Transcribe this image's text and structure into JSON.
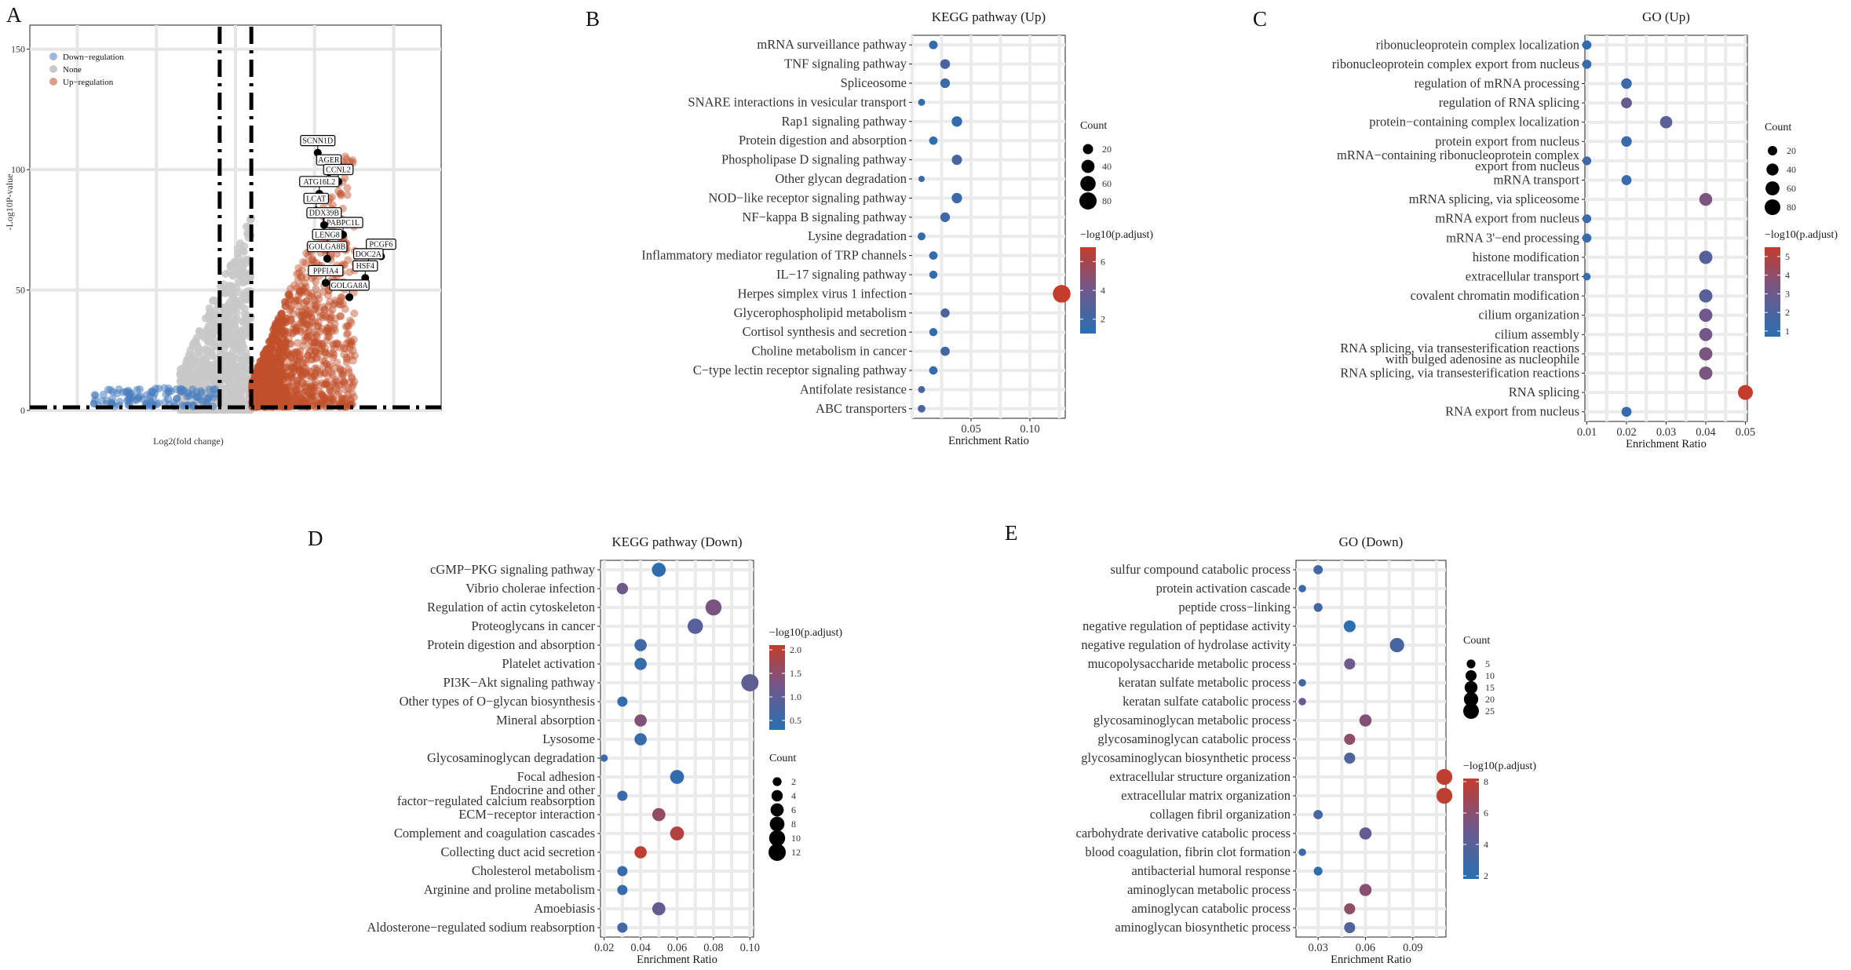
{
  "chart_data": [
    {
      "panel": "A",
      "type": "scatter",
      "title": "",
      "xlabel": "Log2(fold change)",
      "ylabel": "-Log10P-value",
      "yticks": [
        0,
        50,
        100,
        150
      ],
      "ylim": [
        0,
        160
      ],
      "xlim": [
        -13,
        13
      ],
      "thresholds": {
        "x": [
          -1,
          1
        ],
        "y": 1.3
      },
      "legend": [
        {
          "name": "Down−regulation",
          "color": "#4a7fbf"
        },
        {
          "name": "None",
          "color": "#c8c8c8"
        },
        {
          "name": "Up−regulation",
          "color": "#c0502a"
        }
      ],
      "labeled_genes": [
        {
          "gene": "SCNN1D",
          "x": 5.2,
          "y": 107
        },
        {
          "gene": "AGER",
          "x": 5.9,
          "y": 99
        },
        {
          "gene": "CCNL2",
          "x": 6.5,
          "y": 95
        },
        {
          "gene": "ATG16L2",
          "x": 5.3,
          "y": 90
        },
        {
          "gene": "LCAT",
          "x": 5.1,
          "y": 83
        },
        {
          "gene": "PABPC1L",
          "x": 6.8,
          "y": 73
        },
        {
          "gene": "DDX39B",
          "x": 5.6,
          "y": 77
        },
        {
          "gene": "PCGF6",
          "x": 9.2,
          "y": 64
        },
        {
          "gene": "LENG8",
          "x": 5.8,
          "y": 68
        },
        {
          "gene": "DOC2A",
          "x": 8.4,
          "y": 60
        },
        {
          "gene": "GOLGA8B",
          "x": 5.8,
          "y": 63
        },
        {
          "gene": "HSF4",
          "x": 8.2,
          "y": 55
        },
        {
          "gene": "PPFIA4",
          "x": 5.7,
          "y": 53
        },
        {
          "gene": "GOLGA8A",
          "x": 7.2,
          "y": 47
        }
      ]
    },
    {
      "panel": "B",
      "type": "scatter",
      "title": "KEGG pathway (Up)",
      "xlabel": "Enrichment Ratio",
      "xticks": [
        0.05,
        0.1
      ],
      "xtick_labels": [
        "0.05",
        "0.10"
      ],
      "xlim": [
        0.0,
        0.13
      ],
      "categories": [
        "mRNA surveillance pathway",
        "TNF signaling pathway",
        "Spliceosome",
        "SNARE interactions in vesicular transport",
        "Rap1 signaling pathway",
        "Protein digestion and absorption",
        "Phospholipase D signaling pathway",
        "Other glycan degradation",
        "NOD−like receptor signaling pathway",
        "NF−kappa B signaling pathway",
        "Lysine degradation",
        "Inflammatory mediator regulation of TRP channels",
        "IL−17 signaling pathway",
        "Herpes simplex virus 1 infection",
        "Glycerophospholipid metabolism",
        "Cortisol synthesis and secretion",
        "Choline metabolism in cancer",
        "C−type lectin receptor signaling pathway",
        "Antifolate resistance",
        "ABC transporters"
      ],
      "x": [
        0.018,
        0.028,
        0.028,
        0.008,
        0.038,
        0.018,
        0.038,
        0.008,
        0.038,
        0.028,
        0.008,
        0.018,
        0.018,
        0.127,
        0.028,
        0.018,
        0.028,
        0.018,
        0.008,
        0.008
      ],
      "count": [
        12,
        18,
        17,
        6,
        22,
        11,
        20,
        4,
        21,
        17,
        9,
        11,
        10,
        85,
        14,
        10,
        15,
        11,
        6,
        8
      ],
      "neglog10_padj": [
        1.6,
        2.5,
        1.8,
        1.5,
        1.4,
        1.5,
        2.4,
        1.8,
        1.7,
        2.0,
        1.4,
        1.6,
        1.5,
        7.0,
        2.6,
        1.6,
        2.0,
        1.5,
        2.4,
        2.6
      ],
      "legend_count": {
        "title": "Count",
        "values": [
          20,
          40,
          60,
          80
        ]
      },
      "legend_color": {
        "title": "−log10(p.adjust)",
        "ticks": [
          2,
          4,
          6
        ],
        "range": [
          1,
          7
        ]
      }
    },
    {
      "panel": "C",
      "type": "scatter",
      "title": "GO (Up)",
      "xlabel": "Enrichment Ratio",
      "xticks": [
        0.01,
        0.02,
        0.03,
        0.04,
        0.05
      ],
      "xtick_labels": [
        "0.01",
        "0.02",
        "0.03",
        "0.04",
        "0.05"
      ],
      "xlim": [
        0.0095,
        0.0505
      ],
      "categories": [
        "ribonucleoprotein complex localization",
        "ribonucleoprotein complex export from nucleus",
        "regulation of mRNA processing",
        "regulation of RNA splicing",
        "protein−containing complex localization",
        "protein export from nucleus",
        "mRNA−containing ribonucleoprotein complex export from nucleus",
        "mRNA transport",
        "mRNA splicing, via spliceosome",
        "mRNA export from nucleus",
        "mRNA 3'−end processing",
        "histone modification",
        "extracellular transport",
        "covalent chromatin modification",
        "cilium organization",
        "cilium assembly",
        "RNA splicing, via transesterification reactions with bulged adenosine as nucleophile",
        "RNA splicing, via transesterification reactions",
        "RNA splicing",
        "RNA export from nucleus"
      ],
      "x": [
        0.01,
        0.01,
        0.02,
        0.02,
        0.03,
        0.02,
        0.01,
        0.02,
        0.04,
        0.01,
        0.01,
        0.04,
        0.01,
        0.04,
        0.04,
        0.04,
        0.04,
        0.04,
        0.05,
        0.02
      ],
      "count": [
        18,
        18,
        28,
        30,
        42,
        28,
        16,
        24,
        48,
        16,
        18,
        52,
        10,
        52,
        52,
        50,
        52,
        52,
        70,
        24
      ],
      "neglog10_padj": [
        1.0,
        1.2,
        1.4,
        2.8,
        2.4,
        1.3,
        1.5,
        1.2,
        3.4,
        1.3,
        1.2,
        2.2,
        1.1,
        2.3,
        3.1,
        3.2,
        3.4,
        3.4,
        5.5,
        1.2
      ],
      "legend_count": {
        "title": "Count",
        "values": [
          20,
          40,
          60,
          80
        ]
      },
      "legend_color": {
        "title": "−log10(p.adjust)",
        "ticks": [
          1,
          2,
          3,
          4,
          5
        ],
        "range": [
          0.7,
          5.5
        ]
      }
    },
    {
      "panel": "D",
      "type": "scatter",
      "title": "KEGG pathway (Down)",
      "xlabel": "Enrichment Ratio",
      "xticks": [
        0.02,
        0.04,
        0.06,
        0.08,
        0.1
      ],
      "xtick_labels": [
        "0.02",
        "0.04",
        "0.06",
        "0.08",
        "0.10"
      ],
      "xlim": [
        0.018,
        0.102
      ],
      "categories": [
        "cGMP−PKG signaling pathway",
        "Vibrio cholerae infection",
        "Regulation of actin cytoskeleton",
        "Proteoglycans in cancer",
        "Protein digestion and absorption",
        "Platelet activation",
        "PI3K−Akt signaling pathway",
        "Other types of O−glycan biosynthesis",
        "Mineral absorption",
        "Lysosome",
        "Glycosaminoglycan degradation",
        "Focal adhesion",
        "Endocrine and other factor−regulated calcium reabsorption",
        "ECM−receptor interaction",
        "Complement and coagulation cascades",
        "Collecting duct acid secretion",
        "Cholesterol metabolism",
        "Arginine and proline metabolism",
        "Amoebiasis",
        "Aldosterone−regulated sodium reabsorption"
      ],
      "x": [
        0.05,
        0.03,
        0.08,
        0.07,
        0.04,
        0.04,
        0.1,
        0.03,
        0.04,
        0.04,
        0.02,
        0.06,
        0.03,
        0.05,
        0.06,
        0.04,
        0.03,
        0.03,
        0.05,
        0.03
      ],
      "count": [
        7,
        4,
        10,
        9,
        5,
        5,
        12,
        3,
        5,
        5,
        1,
        7,
        3,
        6,
        7,
        5,
        3,
        3,
        6,
        3
      ],
      "neglog10_padj": [
        0.4,
        1.2,
        1.3,
        0.9,
        0.6,
        0.5,
        1.0,
        0.4,
        1.4,
        0.5,
        0.5,
        0.4,
        0.5,
        1.6,
        1.9,
        2.05,
        0.5,
        0.5,
        1.1,
        0.6
      ],
      "legend_count": {
        "title": "Count",
        "values": [
          2,
          4,
          6,
          8,
          10,
          12
        ]
      },
      "legend_color": {
        "title": "−log10(p.adjust)",
        "ticks": [
          0.5,
          1.0,
          1.5,
          2.0
        ],
        "tick_labels": [
          "0.5",
          "1.0",
          "1.5",
          "2.0"
        ],
        "range": [
          0.3,
          2.1
        ]
      }
    },
    {
      "panel": "E",
      "type": "scatter",
      "title": "GO (Down)",
      "xlabel": "Enrichment Ratio",
      "xticks": [
        0.03,
        0.06,
        0.09
      ],
      "xtick_labels": [
        "0.03",
        "0.06",
        "0.09"
      ],
      "xlim": [
        0.016,
        0.111
      ],
      "categories": [
        "sulfur compound catabolic process",
        "protein activation cascade",
        "peptide cross−linking",
        "negative regulation of peptidase activity",
        "negative regulation of hydrolase activity",
        "mucopolysaccharide metabolic process",
        "keratan sulfate metabolic process",
        "keratan sulfate catabolic process",
        "glycosaminoglycan metabolic process",
        "glycosaminoglycan catabolic process",
        "glycosaminoglycan biosynthetic process",
        "extracellular structure organization",
        "extracellular matrix organization",
        "collagen fibril organization",
        "carbohydrate derivative catabolic process",
        "blood coagulation, fibrin clot formation",
        "antibacterial humoral response",
        "aminoglycan metabolic process",
        "aminoglycan catabolic process",
        "aminoglycan biosynthetic process"
      ],
      "x": [
        0.03,
        0.02,
        0.03,
        0.05,
        0.08,
        0.05,
        0.02,
        0.02,
        0.06,
        0.05,
        0.05,
        0.11,
        0.11,
        0.03,
        0.06,
        0.02,
        0.03,
        0.06,
        0.05,
        0.05
      ],
      "count": [
        6,
        3,
        5,
        12,
        20,
        10,
        3,
        3,
        13,
        10,
        10,
        26,
        26,
        6,
        13,
        3,
        5,
        13,
        10,
        10
      ],
      "neglog10_padj": [
        3.0,
        2.5,
        3.0,
        2.0,
        3.2,
        5.0,
        3.0,
        5.0,
        5.8,
        6.2,
        3.6,
        8.0,
        8.0,
        3.2,
        4.4,
        2.6,
        2.1,
        6.0,
        6.3,
        3.6
      ],
      "legend_count": {
        "title": "Count",
        "values": [
          5,
          10,
          15,
          20,
          25
        ]
      },
      "legend_color": {
        "title": "−log10(p.adjust)",
        "ticks": [
          2,
          4,
          6,
          8
        ],
        "range": [
          1.8,
          8.2
        ]
      }
    }
  ]
}
